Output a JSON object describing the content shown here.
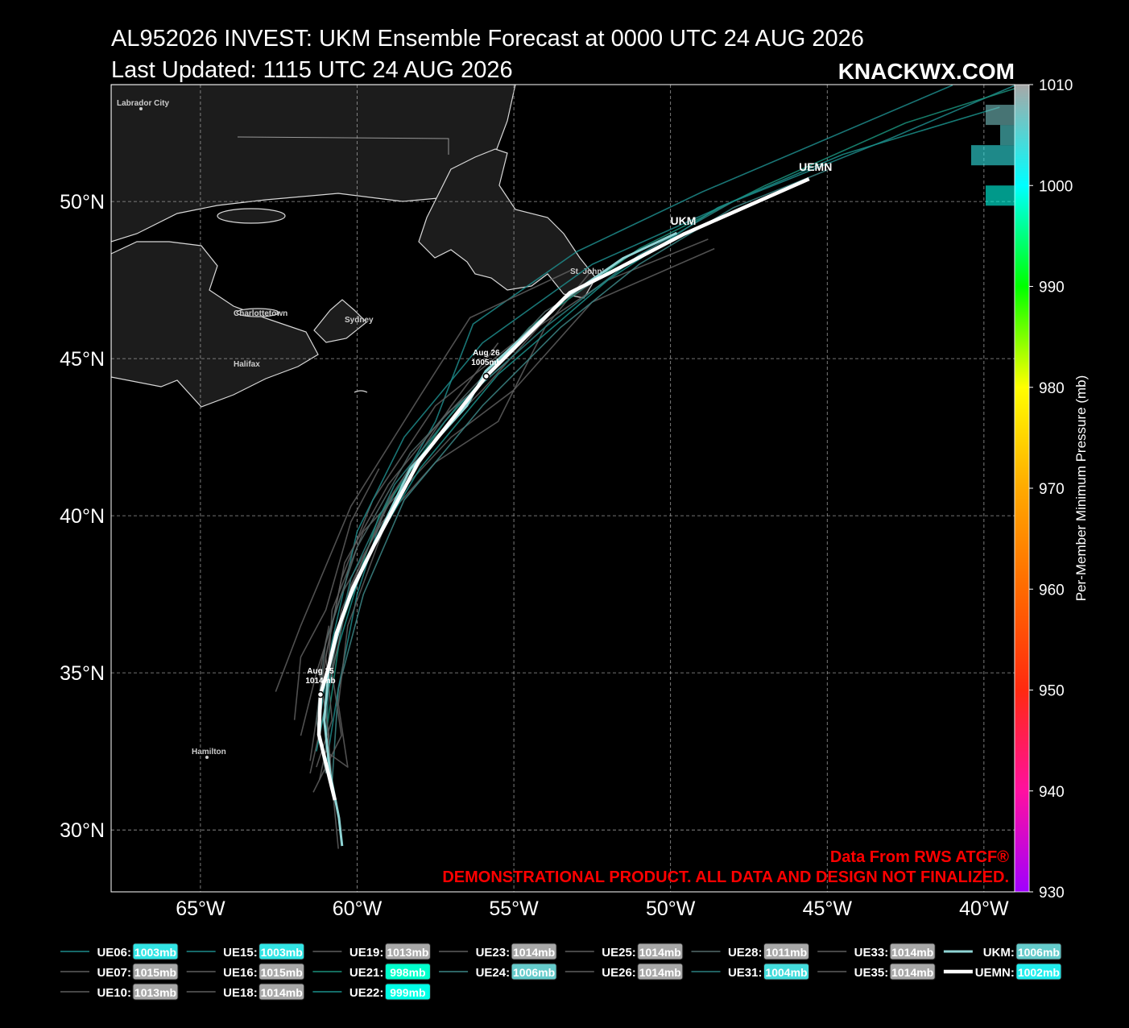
{
  "chart_data": {
    "type": "track",
    "title": "AL952026 INVEST: UKM Ensemble Forecast at 0000 UTC 24 AUG 2026",
    "subtitle": "Last Updated: 1115 UTC 24 AUG 2026",
    "brand": "KNACKWX.COM",
    "annotations": [
      "Data From RWS ATCF®",
      "DEMONSTRATIONAL PRODUCT. ALL DATA AND DESIGN NOT FINALIZED."
    ],
    "places": [
      "Labrador City",
      "Charlottetown",
      "Sydney",
      "Halifax",
      "St. John's",
      "Hamilton"
    ],
    "xlim": [
      -67.85,
      -39.02
    ],
    "ylim": [
      28.03,
      53.72
    ],
    "xticks": [
      {
        "value": -65,
        "label": "65°W"
      },
      {
        "value": -60,
        "label": "60°W"
      },
      {
        "value": -55,
        "label": "55°W"
      },
      {
        "value": -50,
        "label": "50°W"
      },
      {
        "value": -45,
        "label": "45°W"
      },
      {
        "value": -40,
        "label": "40°W"
      }
    ],
    "yticks": [
      {
        "value": 30,
        "label": "30°N"
      },
      {
        "value": 35,
        "label": "35°N"
      },
      {
        "value": 40,
        "label": "40°N"
      },
      {
        "value": 45,
        "label": "45°N"
      },
      {
        "value": 50,
        "label": "50°N"
      }
    ],
    "grid": true,
    "colorbar": {
      "label": "Per-Member Minimum Pressure (mb)",
      "lim": [
        930,
        1010
      ],
      "ticks": [
        930,
        940,
        950,
        960,
        970,
        980,
        990,
        1000,
        1010
      ],
      "colors": [
        "#a000ff",
        "#ff10a0",
        "#ff2a10",
        "#ff6a00",
        "#ffaa00",
        "#ffff00",
        "#00ff00",
        "#00ffff",
        "#a8a8a8"
      ]
    },
    "histogram": {
      "bins": [
        998,
        1000,
        1002,
        1004,
        1006,
        1008
      ],
      "counts": [
        2,
        0,
        3,
        1,
        2
      ]
    },
    "legend_separator": ":",
    "markers": [
      {
        "date": "Aug 25",
        "pressure": 1014,
        "pressure_label": "1014mb",
        "lon": -61.17,
        "lat": 34.31
      },
      {
        "date": "Aug 26",
        "pressure": 1005,
        "pressure_label": "1005mb",
        "lon": -55.88,
        "lat": 44.44
      }
    ],
    "series": [
      {
        "name": "UE06",
        "color": "#1d8a8a",
        "min_pressure": 1003,
        "min_pressure_label": "1003mb",
        "x": [
          -61.0,
          -60.6,
          -60.0,
          -59.2,
          -57.5,
          -56.3,
          -53.0,
          -49.0,
          -45.0,
          -41.0
        ],
        "values": [
          32.0,
          34.5,
          37.5,
          40.0,
          43.0,
          46.1,
          48.4,
          50.3,
          52.0,
          53.7
        ]
      },
      {
        "name": "UE07",
        "color": "#5e5e5e",
        "min_pressure": 1015,
        "min_pressure_label": "1015mb",
        "x": [
          -62.6,
          -61.8,
          -60.2,
          -58.0,
          -56.4,
          -53.2
        ],
        "values": [
          34.4,
          36.5,
          40.3,
          43.8,
          46.3,
          47.8
        ]
      },
      {
        "name": "UE10",
        "color": "#5e5e5e",
        "min_pressure": 1013,
        "min_pressure_label": "1013mb",
        "x": [
          -61.5,
          -61.0,
          -60.5,
          -59.5,
          -58.5,
          -57.5,
          -55.0,
          -52.0,
          -48.8
        ],
        "values": [
          32.2,
          35.5,
          38.0,
          40.5,
          42.0,
          43.5,
          45.5,
          47.5,
          48.8
        ]
      },
      {
        "name": "UE15",
        "color": "#1d8a8a",
        "min_pressure": 1003,
        "min_pressure_label": "1003mb",
        "x": [
          -61.2,
          -60.8,
          -60.0,
          -58.5,
          -56.0,
          -52.5,
          -48.0,
          -43.0,
          -39.0
        ],
        "values": [
          33.5,
          36.0,
          39.5,
          42.5,
          45.5,
          48.0,
          50.0,
          52.0,
          53.7
        ]
      },
      {
        "name": "UE16",
        "color": "#5e5e5e",
        "min_pressure": 1015,
        "min_pressure_label": "1015mb",
        "x": [
          -61.5,
          -61.0,
          -60.8,
          -59.8,
          -57.0,
          -55.0,
          -52.5,
          -48.6
        ],
        "values": [
          31.8,
          34.0,
          37.0,
          39.5,
          42.5,
          44.0,
          46.8,
          48.5
        ]
      },
      {
        "name": "UE18",
        "color": "#5e5e5e",
        "min_pressure": 1014,
        "min_pressure_label": "1014mb",
        "x": [
          -61.8,
          -61.3,
          -60.5,
          -59.2,
          -57.5,
          -55.5,
          -54.0,
          -52.6
        ],
        "values": [
          33.0,
          35.0,
          37.5,
          39.8,
          41.7,
          43.0,
          46.0,
          47.7
        ]
      },
      {
        "name": "UE19",
        "color": "#5e5e5e",
        "min_pressure": 1013,
        "min_pressure_label": "1013mb",
        "x": [
          -60.6,
          -60.8,
          -61.0,
          -60.5,
          -59.0,
          -57.0,
          -55.5
        ],
        "values": [
          29.4,
          31.5,
          34.0,
          37.0,
          40.5,
          43.5,
          45.5
        ]
      },
      {
        "name": "UE21",
        "color": "#1a8f7a",
        "min_pressure": 998,
        "min_pressure_label": "998mb",
        "x": [
          -61.0,
          -60.5,
          -59.3,
          -57.2,
          -54.5,
          -51.0,
          -47.0,
          -42.5,
          -39.0
        ],
        "values": [
          33.0,
          36.5,
          40.0,
          43.0,
          46.0,
          48.5,
          50.5,
          52.5,
          53.6
        ]
      },
      {
        "name": "UE22",
        "color": "#1a8f8a",
        "min_pressure": 999,
        "min_pressure_label": "999mb",
        "x": [
          -61.3,
          -60.7,
          -59.8,
          -58.0,
          -55.5,
          -52.0,
          -48.5,
          -44.5,
          -39.5
        ],
        "values": [
          32.5,
          35.5,
          38.5,
          41.5,
          44.5,
          47.5,
          49.8,
          51.5,
          53.0
        ]
      },
      {
        "name": "UE23",
        "color": "#5e5e5e",
        "min_pressure": 1014,
        "min_pressure_label": "1014mb",
        "x": [
          -62.0,
          -61.8,
          -61.0,
          -60.2,
          -59.3
        ],
        "values": [
          33.5,
          35.5,
          37.0,
          39.8,
          41.5
        ]
      },
      {
        "name": "UE24",
        "color": "#3c8686",
        "min_pressure": 1006,
        "min_pressure_label": "1006mb",
        "x": [
          -60.8,
          -60.6,
          -59.8,
          -58.5,
          -56.0,
          -53.5,
          -51.0,
          -48.0,
          -45.0
        ],
        "values": [
          31.5,
          34.5,
          37.5,
          40.5,
          43.5,
          46.0,
          48.0,
          49.8,
          51.0
        ]
      },
      {
        "name": "UE25",
        "color": "#5e5e5e",
        "min_pressure": 1014,
        "min_pressure_label": "1014mb",
        "x": [
          -61.0,
          -60.3,
          -60.6,
          -60.3,
          -59.0,
          -57.5,
          -56.0,
          -53.5
        ],
        "values": [
          32.5,
          32.0,
          34.0,
          36.5,
          40.0,
          42.5,
          44.0,
          46.8
        ]
      },
      {
        "name": "UE26",
        "color": "#5e5e5e",
        "min_pressure": 1014,
        "min_pressure_label": "1014mb",
        "x": [
          -61.3,
          -60.8,
          -61.0,
          -60.4,
          -59.0,
          -57.2,
          -55.2
        ],
        "values": [
          32.0,
          33.5,
          35.5,
          38.5,
          41.0,
          43.2,
          44.9
        ]
      },
      {
        "name": "UE28",
        "color": "#546a6a",
        "min_pressure": 1011,
        "min_pressure_label": "1011mb",
        "x": [
          -61.0,
          -61.3,
          -61.0,
          -60.0,
          -58.3,
          -56.2,
          -54.0,
          -51.5
        ],
        "values": [
          31.8,
          33.5,
          36.0,
          39.0,
          42.0,
          44.2,
          46.5,
          48.0
        ]
      },
      {
        "name": "UE31",
        "color": "#2a8080",
        "min_pressure": 1004,
        "min_pressure_label": "1004mb",
        "x": [
          -61.0,
          -60.9,
          -60.2,
          -58.8,
          -56.8,
          -54.0,
          -51.0,
          -48.0
        ],
        "values": [
          32.5,
          35.0,
          38.0,
          41.0,
          43.5,
          46.0,
          48.3,
          50.0
        ]
      },
      {
        "name": "UE33",
        "color": "#5e5e5e",
        "min_pressure": 1014,
        "min_pressure_label": "1014mb",
        "x": [
          -61.2,
          -60.9,
          -61.2,
          -60.9
        ],
        "values": [
          31.6,
          33.0,
          35.0,
          36.5
        ]
      },
      {
        "name": "UE35",
        "color": "#5e5e5e",
        "min_pressure": 1014,
        "min_pressure_label": "1014mb",
        "x": [
          -61.4,
          -60.5,
          -60.8,
          -60.2,
          -58.8
        ],
        "values": [
          31.2,
          33.0,
          35.0,
          37.8,
          40.8
        ]
      },
      {
        "name": "UKM",
        "color": "#8fd4d4",
        "min_pressure": 1006,
        "min_pressure_label": "1006mb",
        "x": [
          -60.48,
          -60.58,
          -60.86,
          -61.05,
          -60.9,
          -60.4,
          -59.6,
          -58.3,
          -56.5,
          -55.9,
          -53.4,
          -51.5,
          -49.8
        ],
        "values": [
          29.49,
          30.38,
          31.79,
          33.5,
          35.2,
          37.0,
          38.8,
          41.5,
          43.5,
          44.6,
          46.9,
          48.2,
          49.0
        ]
      },
      {
        "name": "UEMN",
        "color": "#ffffff",
        "min_pressure": 1002,
        "min_pressure_label": "1002mb",
        "x": [
          -60.71,
          -61.22,
          -61.17,
          -60.91,
          -60.66,
          -60.14,
          -59.45,
          -58.04,
          -55.88,
          -53.21,
          -51.92,
          -49.56,
          -45.58
        ],
        "values": [
          30.95,
          33.03,
          34.31,
          35.18,
          36.26,
          37.69,
          39.08,
          41.72,
          44.44,
          47.1,
          47.74,
          48.97,
          50.72
        ]
      }
    ]
  }
}
